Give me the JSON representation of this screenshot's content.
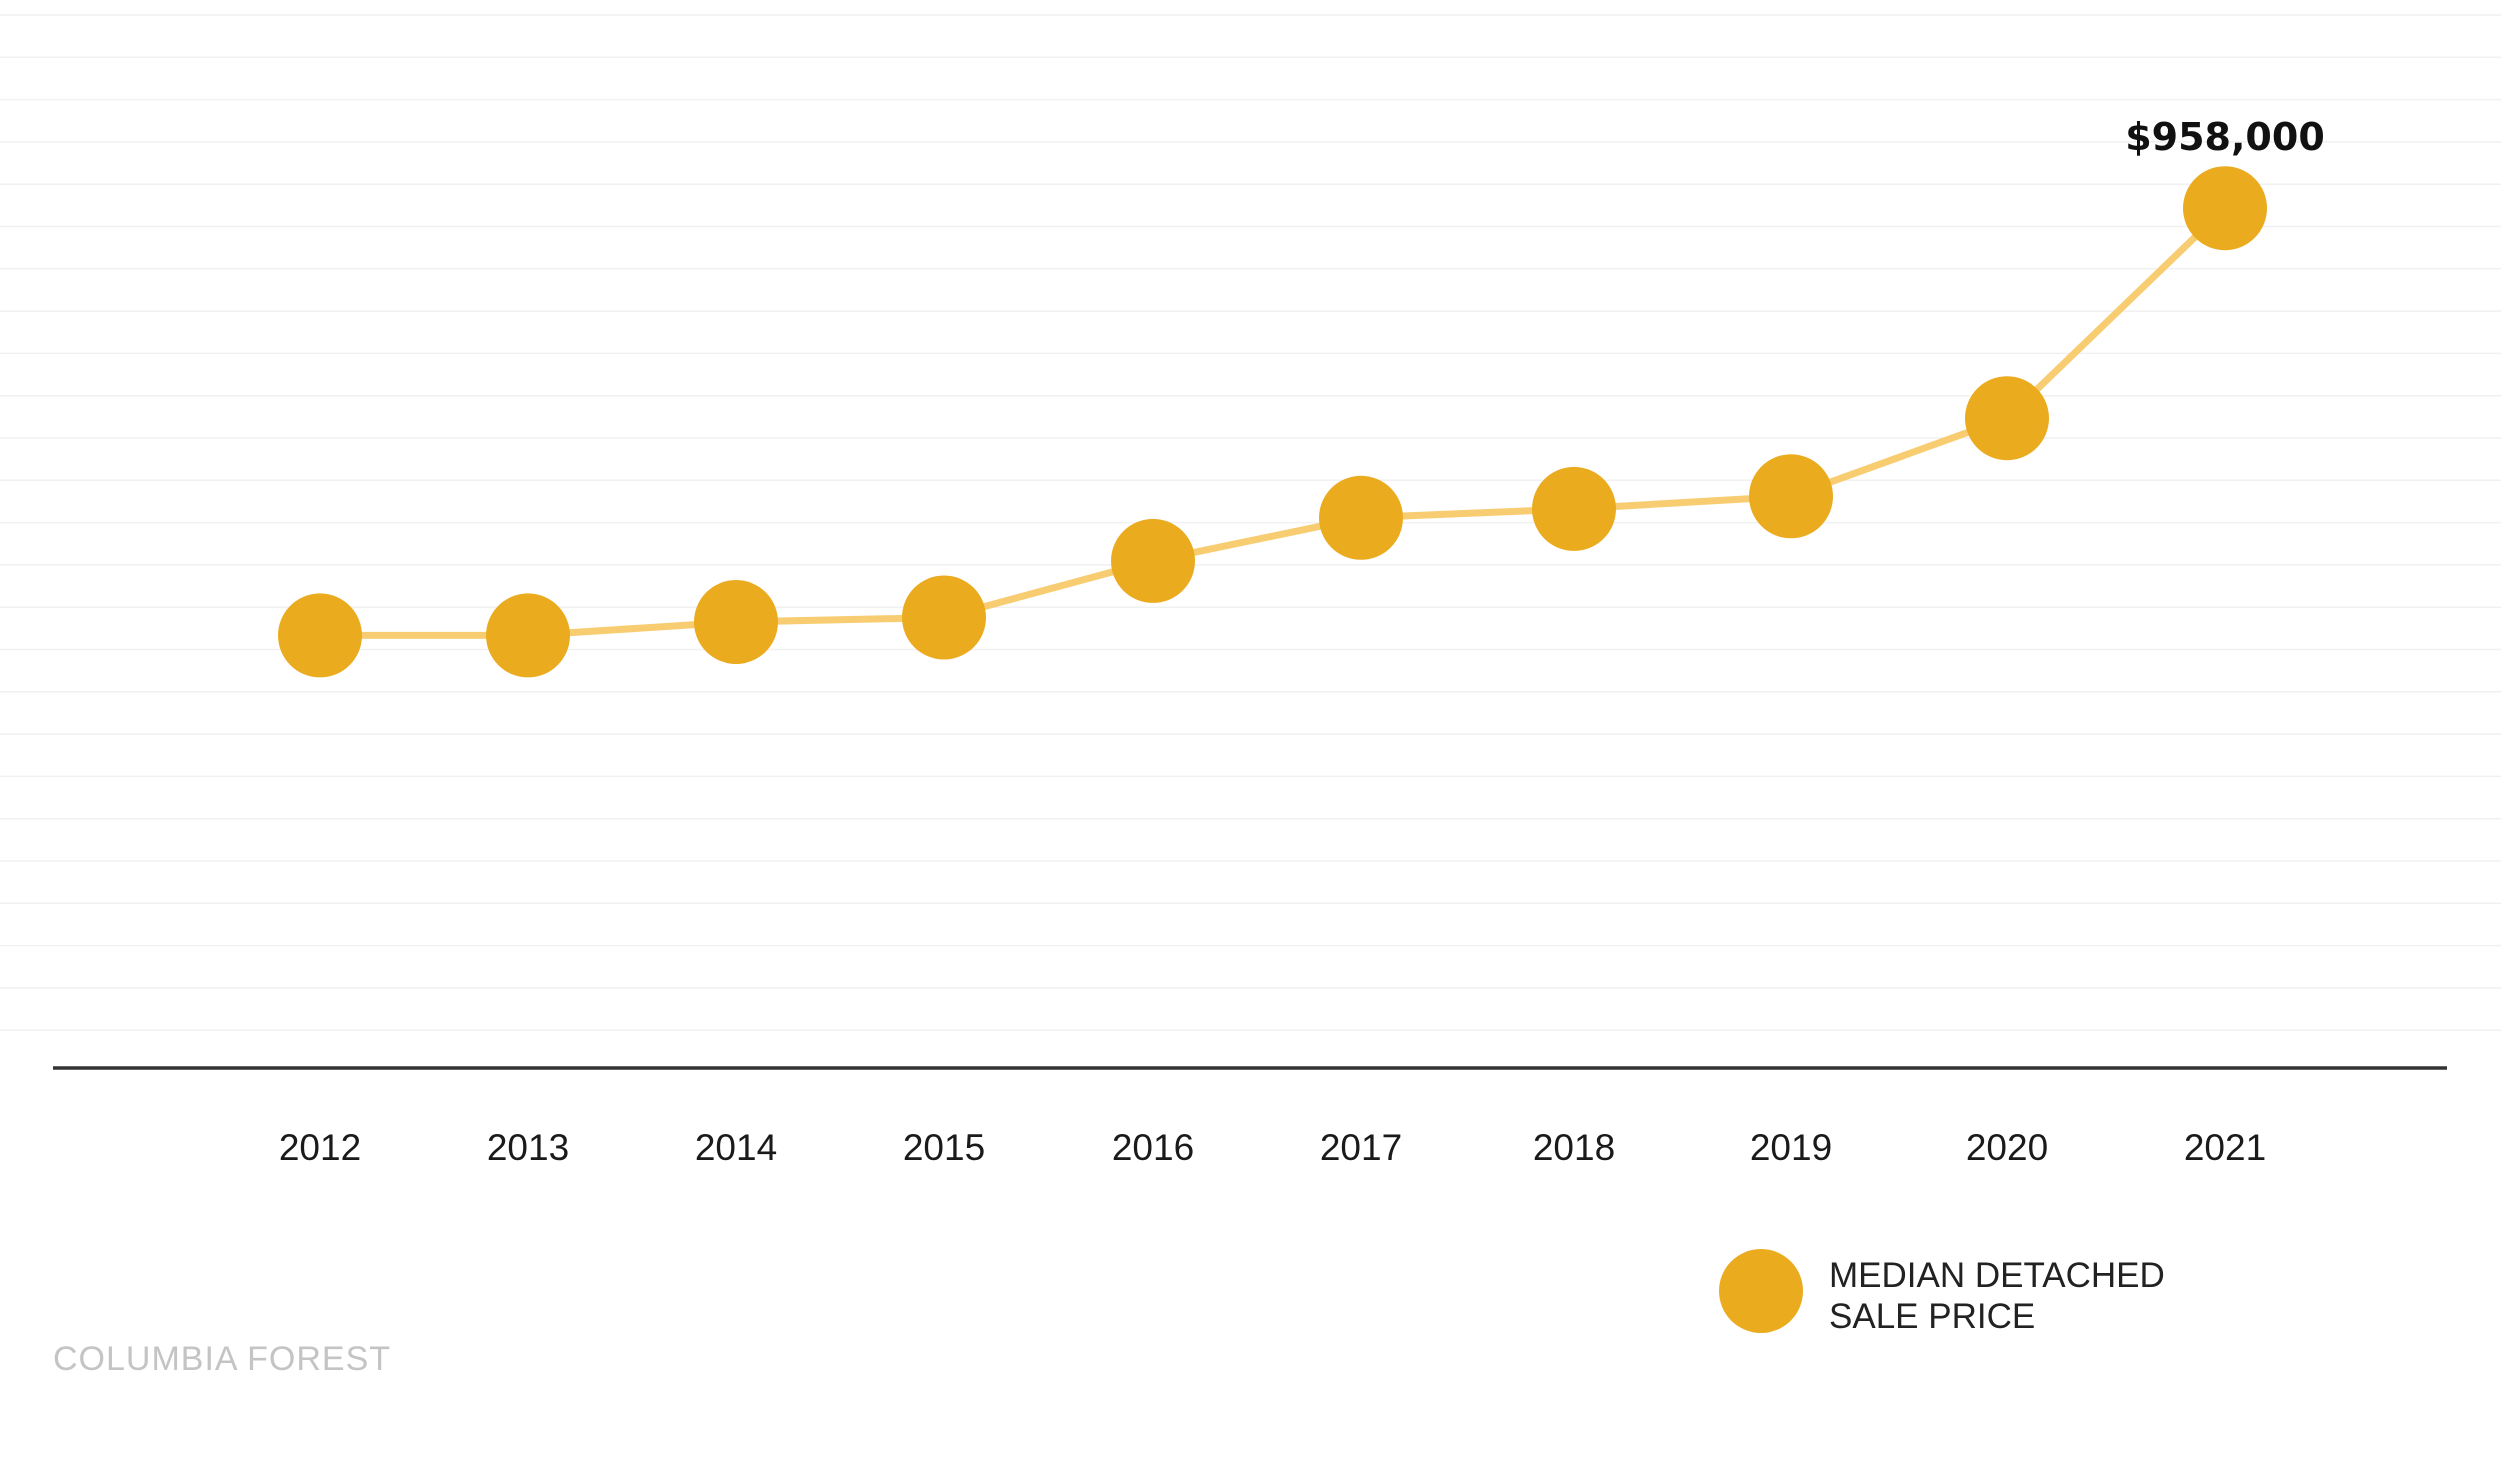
{
  "chart_data": {
    "type": "line",
    "x": [
      "2012",
      "2013",
      "2014",
      "2015",
      "2016",
      "2017",
      "2018",
      "2019",
      "2020",
      "2021"
    ],
    "series": [
      {
        "name": "MEDIAN DETACHED SALE PRICE",
        "values": [
          482000,
          482000,
          497000,
          502000,
          565000,
          613000,
          623000,
          637000,
          724000,
          958000
        ]
      }
    ],
    "annotations": [
      {
        "x": "2021",
        "text": "$958,000"
      }
    ],
    "ylim": [
      0,
      1190000
    ],
    "grid": true,
    "legend_position": "bottom-right",
    "colors": {
      "point": "#ebab1e",
      "line": "#f8cd72",
      "axis": "#333333",
      "grid": "#f1f1f1"
    }
  },
  "legend": {
    "line1": "MEDIAN DETACHED",
    "line2": "SALE PRICE"
  },
  "brand": "COLUMBIA FOREST"
}
